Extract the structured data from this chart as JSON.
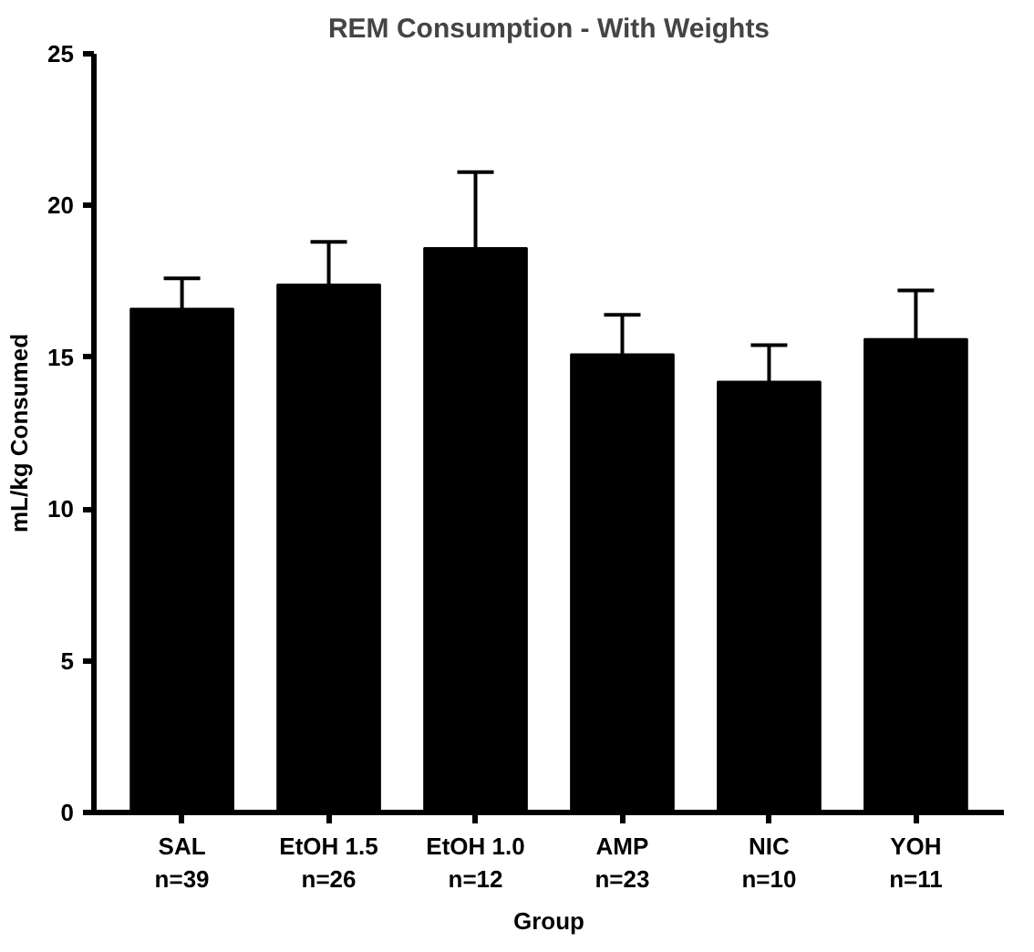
{
  "chart_data": {
    "type": "bar",
    "title": "REM Consumption - With Weights",
    "xlabel": "Group",
    "ylabel": "mL/kg Consumed",
    "categories": [
      "SAL\nn=39",
      "EtOH 1.5\nn=26",
      "EtOH 1.0\nn=12",
      "AMP\nn=23",
      "NIC\nn=10",
      "YOH\nn=11"
    ],
    "values": [
      16.6,
      17.4,
      18.6,
      15.1,
      14.2,
      15.6
    ],
    "errors": [
      1.0,
      1.4,
      2.5,
      1.3,
      1.2,
      1.6
    ],
    "color": "#000000",
    "ylim": [
      0,
      25
    ],
    "yticks": [
      0,
      5,
      10,
      15,
      20,
      25
    ],
    "grid": false
  }
}
